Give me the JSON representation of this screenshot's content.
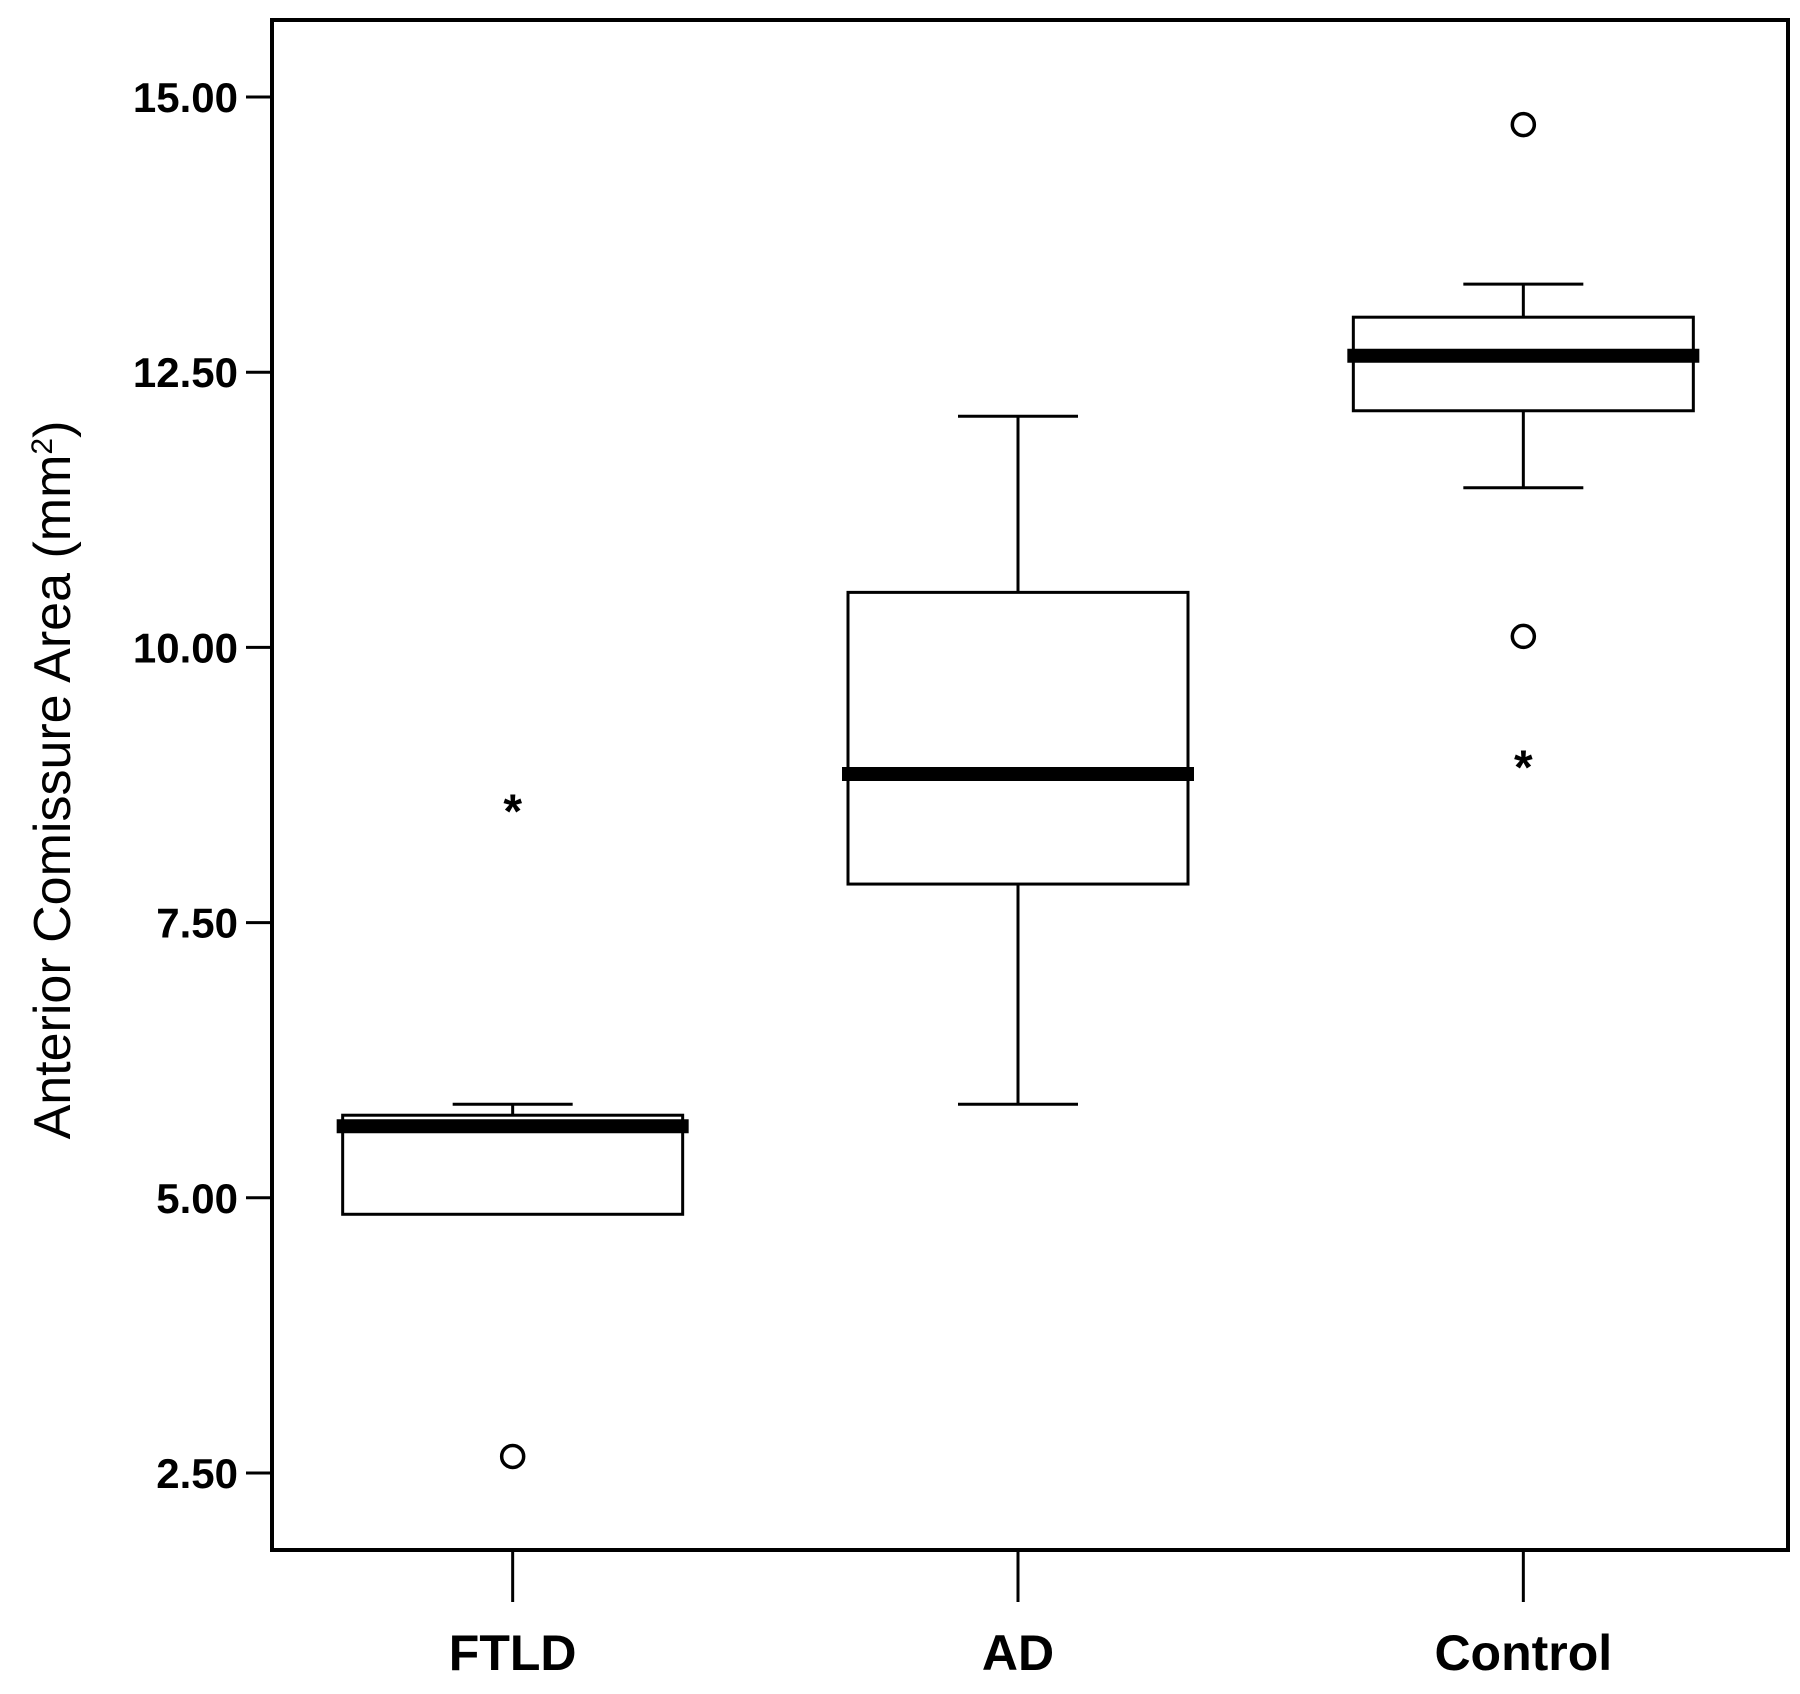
{
  "chart_data": {
    "type": "box",
    "ylabel": "Anterior Comissure Area (mm",
    "ylabel_superscript": "2",
    "ylabel_suffix": ")",
    "yticks": [
      "2.50",
      "5.00",
      "7.50",
      "10.00",
      "12.50",
      "15.00"
    ],
    "ytick_values": [
      2.5,
      5.0,
      7.5,
      10.0,
      12.5,
      15.0
    ],
    "ylim": [
      1.8,
      15.7
    ],
    "grid": false,
    "categories": [
      "FTLD",
      "AD",
      "Control"
    ],
    "boxes": [
      {
        "category": "FTLD",
        "whisker_low": 4.85,
        "q1": 4.85,
        "median": 5.65,
        "q3": 5.75,
        "whisker_high": 5.85,
        "outliers": [
          2.65
        ],
        "extremes": [
          8.6
        ]
      },
      {
        "category": "AD",
        "whisker_low": 5.85,
        "q1": 7.85,
        "median": 8.85,
        "q3": 10.5,
        "whisker_high": 12.1,
        "outliers": [],
        "extremes": []
      },
      {
        "category": "Control",
        "whisker_low": 11.45,
        "q1": 12.15,
        "median": 12.65,
        "q3": 13.0,
        "whisker_high": 13.3,
        "outliers": [
          14.75,
          10.1
        ],
        "extremes": [
          9.0
        ]
      }
    ]
  }
}
